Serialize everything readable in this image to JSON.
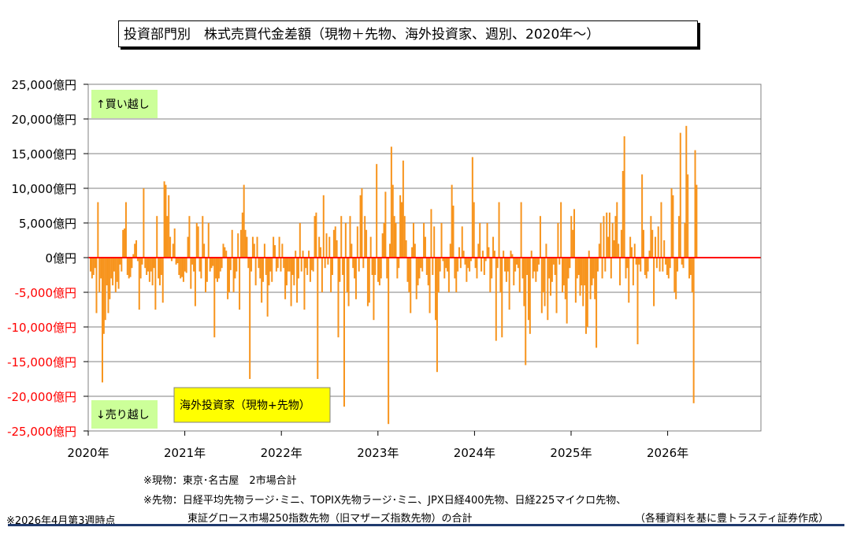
{
  "title": "投資部門別　株式売買代金差額（現物＋先物、海外投資家、週別、2020年～）",
  "notes": {
    "spot": "※現物：東京･名古屋　2市場合計",
    "futures_line1": "※先物：日経平均先物ラージ･ミニ、TOPIX先物ラージ･ミニ、JPX日経400先物、日経225マイクロ先物、",
    "futures_line2": "東証グロース市場250指数先物（旧マザーズ指数先物）の合計",
    "asof": "※2026年4月第3週時点",
    "source": "（各種資料を基に豊トラスティ証券作成）"
  },
  "colors": {
    "bar": "#f7941d",
    "zero_line": "#ff0000",
    "grid": "#808080",
    "positive_label_bg": "#ccff99",
    "series_label_bg": "#ffff00",
    "negative_tick": "#ff0000"
  },
  "chart_data": {
    "type": "bar",
    "ylim": [
      -25000,
      25000
    ],
    "y_ticks": [
      25000,
      20000,
      15000,
      10000,
      5000,
      0,
      -5000,
      -10000,
      -15000,
      -20000,
      -25000
    ],
    "y_tick_labels": [
      "25,000億円",
      "20,000億円",
      "15,000億円",
      "10,000億円",
      "5,000億円",
      "0億円",
      "-5,000億円",
      "-10,000億円",
      "-15,000億円",
      "-20,000億円",
      "-25,000億円"
    ],
    "x_tick_labels": [
      "2020年",
      "2021年",
      "2022年",
      "2023年",
      "2024年",
      "2025年",
      "2026年"
    ],
    "x_range_years": [
      2020,
      2027
    ],
    "grid": true,
    "annotations": {
      "top_left": "↑買い越し",
      "bottom_left": "↓売り越し",
      "series_label": "海外投資家（現物+先物）"
    },
    "series": [
      {
        "values": [
          -2000,
          -3000,
          -2500,
          -1500,
          -8000,
          8000,
          -5000,
          -3000,
          -18000,
          -11000,
          -9000,
          -4000,
          -8000,
          -6000,
          -3000,
          -4000,
          -2000,
          -5000,
          -3500,
          -4500,
          -1000,
          -2000,
          4000,
          4200,
          8000,
          -2500,
          -3000,
          -2800,
          -1500,
          500,
          2000,
          2500,
          -500,
          -7500,
          -3000,
          -1000,
          10000,
          -1500,
          -2500,
          -2000,
          -3500,
          -2000,
          -4000,
          -1500,
          -7500,
          6000,
          -3000,
          -4000,
          -2500,
          -6500,
          11000,
          10500,
          6000,
          9000,
          3000,
          -500,
          2000,
          4200,
          -1000,
          -800,
          -2500,
          -3000,
          -2800,
          -3500,
          -2000,
          -2200,
          3000,
          6000,
          -4500,
          -1000,
          -2000,
          -7000,
          5000,
          4500,
          -2000,
          -3000,
          6000,
          2000,
          -5000,
          -3500,
          5000,
          -2000,
          -1500,
          -1200,
          -11500,
          -3000,
          -3500,
          -3000,
          -2000,
          -1500,
          2000,
          1500,
          1000,
          -6000,
          -5000,
          -1800,
          4000,
          -5000,
          -3000,
          -2000,
          3500,
          -7500,
          4000,
          6500,
          10500,
          4000,
          3000,
          -1500,
          -17500,
          -2000,
          3000,
          2000,
          -4000,
          3000,
          -1500,
          -3000,
          -6500,
          -3500,
          2000,
          -2500,
          -8500,
          -4000,
          -2000,
          -3500,
          3000,
          1800,
          -2000,
          -1500,
          3000,
          -2000,
          2000,
          -1500,
          -6000,
          -4000,
          -2000,
          -2000,
          -7000,
          -2500,
          -4000,
          1000,
          -6500,
          -3000,
          5000,
          -2000,
          1000,
          -7500,
          -1500,
          -2500,
          1000,
          -3500,
          -1800,
          -2000,
          6000,
          6500,
          -17500,
          3000,
          1500,
          -5000,
          9000,
          -1500,
          3500,
          -1000,
          3000,
          -5000,
          -2500,
          4000,
          4500,
          2500,
          -11500,
          -3500,
          6000,
          -2500,
          -21500,
          5000,
          -5000,
          -7000,
          6000,
          2000,
          -1500,
          -3000,
          -6000,
          4500,
          -2000,
          9000,
          10000,
          -1500,
          6000,
          4000,
          -7000,
          -6500,
          3000,
          -2500,
          -9000,
          -2500,
          13500,
          -3500,
          -4000,
          -3000,
          3500,
          5000,
          9500,
          -3000,
          -24000,
          2000,
          16000,
          10500,
          6000,
          5000,
          -3000,
          -1500,
          9000,
          8000,
          14000,
          6000,
          2500,
          -3500,
          -5000,
          -8000,
          1500,
          5000,
          2000,
          -6000,
          -4000,
          -3000,
          -1500,
          -2000,
          5000,
          3000,
          -2500,
          -4000,
          -8000,
          7000,
          -2500,
          4500,
          -9000,
          -16500,
          -5000,
          -2000,
          5000,
          -500,
          -3000,
          -1500,
          -2000,
          -5000,
          2000,
          10500,
          7500,
          -3000,
          -5000,
          -2000,
          1500,
          -1500,
          4500,
          1000,
          -1000,
          -3500,
          -1500,
          -2000,
          -500,
          14500,
          8000,
          -1500,
          -3000,
          2000,
          5000,
          -2000,
          1000,
          -2500,
          -500,
          5000,
          1500,
          -5000,
          -3000,
          3000,
          1000,
          -12000,
          -1500,
          8000,
          -5000,
          -11500,
          1000,
          -2000,
          -3500,
          -2000,
          -7500,
          1000,
          500,
          -4000,
          -2000,
          -1000,
          -1500,
          -5000,
          8000,
          -3000,
          -7000,
          -15500,
          -2500,
          -9000,
          -11000,
          1000,
          -3000,
          -2000,
          -3500,
          -2000,
          -1000,
          6000,
          -8000,
          -5000,
          -7000,
          2000,
          -9000,
          -3000,
          -5500,
          -3500,
          -1000,
          -2500,
          -8000,
          5000,
          -1000,
          8000,
          -5000,
          -4000,
          -6000,
          -9500,
          -3000,
          -1500,
          6000,
          4000,
          7000,
          -6500,
          -3000,
          -2500,
          -5500,
          -4000,
          -7000,
          -4000,
          -11000,
          -10000,
          1000,
          -6000,
          -4000,
          -3000,
          -6000,
          -13000,
          -2000,
          2000,
          5000,
          -3000,
          6000,
          -2000,
          6500,
          3000,
          6500,
          -3000,
          5000,
          2500,
          6000,
          8000,
          2000,
          -4000,
          4000,
          12500,
          17500,
          -3000,
          -1500,
          -6500,
          3000,
          1500,
          -4000,
          2000,
          -1000,
          -12500,
          -1000,
          -2000,
          12000,
          4000,
          -2500,
          -3000,
          -2000,
          1000,
          6000,
          4000,
          -7000,
          3000,
          -1500,
          4500,
          -2000,
          8000,
          -2000,
          2500,
          -1000,
          -2500,
          -3000,
          -1500,
          10000,
          9000,
          -5000,
          -6000,
          -2000,
          6000,
          18000,
          -1000,
          -1500,
          5000,
          19000,
          12000,
          -3000,
          -2500,
          -5000,
          -21000,
          15500,
          10500
        ]
      }
    ]
  }
}
